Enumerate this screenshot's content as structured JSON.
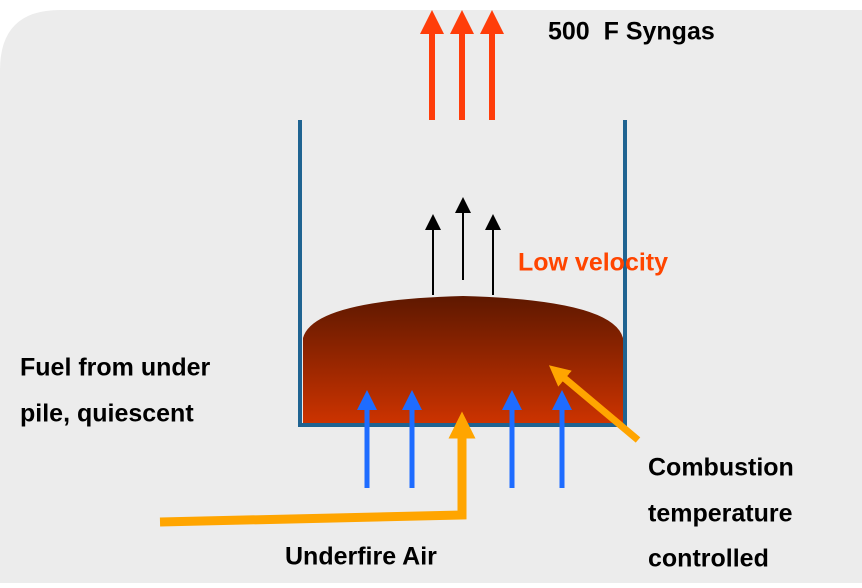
{
  "labels": {
    "syngas": "500  F Syngas",
    "low_velocity": "Low velocity",
    "fuel": [
      "Fuel from under",
      "pile, quiescent"
    ],
    "combustion": [
      "Combustion",
      "temperature",
      "controlled"
    ],
    "underfire": "Underfire Air"
  }
}
